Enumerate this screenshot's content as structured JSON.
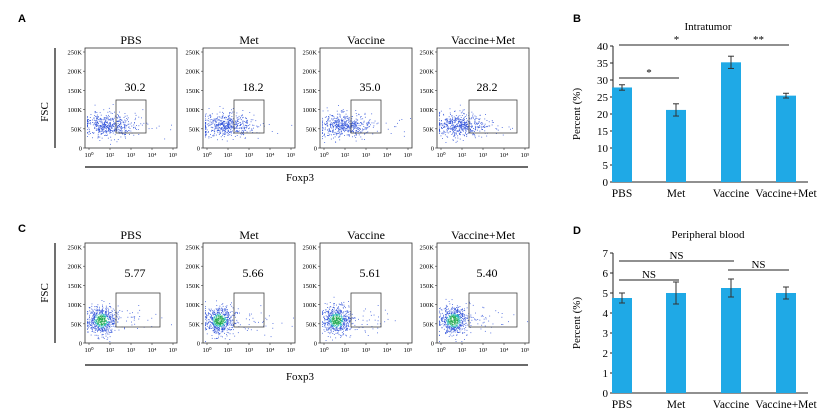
{
  "panels": {
    "A": {
      "letter": "A",
      "xlabel": "Foxp3",
      "ylabel": "FSC"
    },
    "B": {
      "letter": "B"
    },
    "C": {
      "letter": "C",
      "xlabel": "Foxp3",
      "ylabel": "FSC"
    },
    "D": {
      "letter": "D"
    }
  },
  "flow": {
    "y_ticks": [
      "250K",
      "200K",
      "150K",
      "100K",
      "50K",
      "0"
    ],
    "x_ticks": [
      "10⁰",
      "10²",
      "10³",
      "10⁴",
      "10⁵"
    ],
    "colors": {
      "dots": "#2b4fd8",
      "dense": "#1fa84a",
      "gate": "#444444"
    }
  },
  "chart_data": [
    {
      "type": "flow-cytometry",
      "panel": "A",
      "plots": [
        {
          "title": "PBS",
          "gate_percent": "30.2"
        },
        {
          "title": "Met",
          "gate_percent": "18.2"
        },
        {
          "title": "Vaccine",
          "gate_percent": "35.0"
        },
        {
          "title": "Vaccine+Met",
          "gate_percent": "28.2"
        }
      ]
    },
    {
      "type": "bar",
      "panel": "B",
      "title": "Intratumor",
      "ylabel": "Percent (%)",
      "categories": [
        "PBS",
        "Met",
        "Vaccine",
        "Vaccine+Met"
      ],
      "values": [
        27.8,
        21.2,
        35.2,
        25.4
      ],
      "errors": [
        0.8,
        1.8,
        1.8,
        0.7
      ],
      "ylim": [
        0,
        40
      ],
      "yticks": [
        0,
        5,
        10,
        15,
        20,
        25,
        30,
        35,
        40
      ],
      "bar_color": "#1fa9e6",
      "brackets": [
        {
          "from": 0,
          "to": 1,
          "label": "*"
        },
        {
          "from": 0,
          "to": 2,
          "label": "*"
        },
        {
          "from": 2,
          "to": 3,
          "label": "**"
        }
      ]
    },
    {
      "type": "flow-cytometry",
      "panel": "C",
      "plots": [
        {
          "title": "PBS",
          "gate_percent": "5.77"
        },
        {
          "title": "Met",
          "gate_percent": "5.66"
        },
        {
          "title": "Vaccine",
          "gate_percent": "5.61"
        },
        {
          "title": "Vaccine+Met",
          "gate_percent": "5.40"
        }
      ]
    },
    {
      "type": "bar",
      "panel": "D",
      "title": "Peripheral blood",
      "ylabel": "Percent (%)",
      "categories": [
        "PBS",
        "Met",
        "Vaccine",
        "Vaccine+Met"
      ],
      "values": [
        4.75,
        5.0,
        5.25,
        5.0
      ],
      "errors": [
        0.25,
        0.55,
        0.45,
        0.3
      ],
      "ylim": [
        0,
        7
      ],
      "yticks": [
        0,
        1,
        2,
        3,
        4,
        5,
        6,
        7
      ],
      "bar_color": "#1fa9e6",
      "brackets": [
        {
          "from": 0,
          "to": 1,
          "label": "NS"
        },
        {
          "from": 0,
          "to": 2,
          "label": "NS"
        },
        {
          "from": 2,
          "to": 3,
          "label": "NS"
        }
      ]
    }
  ]
}
